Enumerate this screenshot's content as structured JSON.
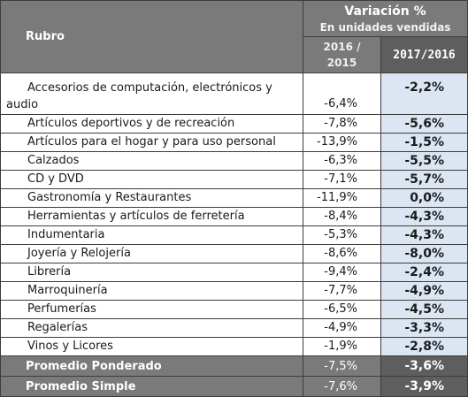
{
  "header": {
    "rubro": "Rubro",
    "variacion_title": "Variación %",
    "variacion_subtitle": "En unidades vendidas",
    "year_a_line1": "2016 /",
    "year_a_line2": "2015",
    "year_b": "2017/2016"
  },
  "rows": [
    {
      "label": "Accesorios de computación, electrónicos y audio",
      "v2016": "-6,4%",
      "v2017": "-2,2%"
    },
    {
      "label": "Artículos deportivos y de recreación",
      "v2016": "-7,8%",
      "v2017": "-5,6%"
    },
    {
      "label": "Artículos para el hogar y para uso personal",
      "v2016": "-13,9%",
      "v2017": "-1,5%"
    },
    {
      "label": "Calzados",
      "v2016": "-6,3%",
      "v2017": "-5,5%"
    },
    {
      "label": "CD y DVD",
      "v2016": "-7,1%",
      "v2017": "-5,7%"
    },
    {
      "label": "Gastronomía y Restaurantes",
      "v2016": "-11,9%",
      "v2017": "0,0%"
    },
    {
      "label": "Herramientas y artículos de ferretería",
      "v2016": "-8,4%",
      "v2017": "-4,3%"
    },
    {
      "label": "Indumentaria",
      "v2016": "-5,3%",
      "v2017": "-4,3%"
    },
    {
      "label": "Joyería y Relojería",
      "v2016": "-8,6%",
      "v2017": "-8,0%"
    },
    {
      "label": "Librería",
      "v2016": "-9,4%",
      "v2017": "-2,4%"
    },
    {
      "label": "Marroquinería",
      "v2016": "-7,7%",
      "v2017": "-4,9%"
    },
    {
      "label": "Perfumerías",
      "v2016": "-6,5%",
      "v2017": "-4,5%"
    },
    {
      "label": "Regalerías",
      "v2016": "-4,9%",
      "v2017": "-3,3%"
    },
    {
      "label": "Vinos y Licores",
      "v2016": "-1,9%",
      "v2017": "-2,8%"
    }
  ],
  "summary": [
    {
      "label": "Promedio Ponderado",
      "v2016": "-7,5%",
      "v2017": "-3,6%"
    },
    {
      "label": "Promedio Simple",
      "v2016": "-7,6%",
      "v2017": "-3,9%"
    }
  ],
  "colors": {
    "header_bg": "#7a7a7a",
    "header_dark_bg": "#5e5e5e",
    "highlight_bg": "#dce6f2"
  }
}
